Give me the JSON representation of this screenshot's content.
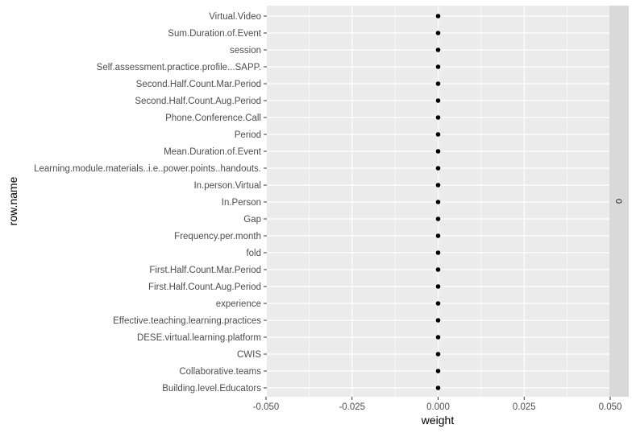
{
  "chart_data": {
    "type": "scatter",
    "xlabel": "weight",
    "ylabel": "row.name",
    "xlim": [
      -0.05,
      0.05
    ],
    "x_ticks": [
      "-0.050",
      "-0.025",
      "0.000",
      "0.025",
      "0.050"
    ],
    "x_tick_values": [
      -0.05,
      -0.025,
      0,
      0.025,
      0.05
    ],
    "facet_label": "0",
    "grid": true,
    "categories": [
      "Virtual.Video",
      "Sum.Duration.of.Event",
      "session",
      "Self.assessment.practice.profile...SAPP.",
      "Second.Half.Count.Mar.Period",
      "Second.Half.Count.Aug.Period",
      "Phone.Conference.Call",
      "Period",
      "Mean.Duration.of.Event",
      "Learning.module.materials..i.e..power.points..handouts.",
      "In.person.Virtual",
      "In.Person",
      "Gap",
      "Frequency.per.month",
      "fold",
      "First.Half.Count.Mar.Period",
      "First.Half.Count.Aug.Period",
      "experience",
      "Effective.teaching.learning.practices",
      "DESE.virtual.learning.platform",
      "CWIS",
      "Collaborative.teams",
      "Building.level.Educators"
    ],
    "values": [
      0,
      0,
      0,
      0,
      0,
      0,
      0,
      0,
      0,
      0,
      0,
      0,
      0,
      0,
      0,
      0,
      0,
      0,
      0,
      0,
      0,
      0,
      0
    ]
  },
  "colors": {
    "panel_bg": "#ebebeb",
    "grid_major": "#ffffff",
    "strip_bg": "#d9d9d9",
    "point": "#000000",
    "tick_text": "#4d4d4d",
    "axis_title": "#000000"
  }
}
